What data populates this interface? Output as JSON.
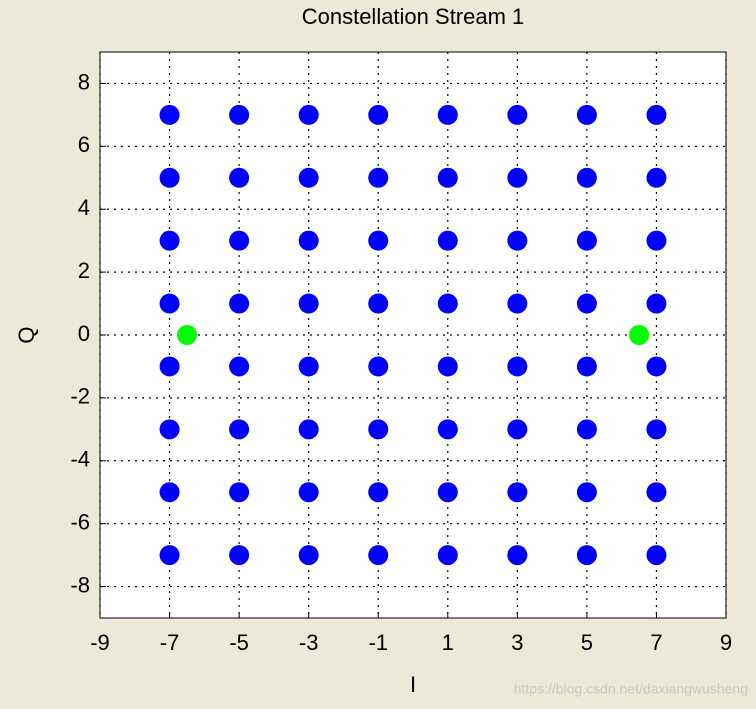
{
  "chart_data": {
    "type": "scatter",
    "title": "Constellation Stream 1",
    "x_label": "I",
    "y_label": "Q",
    "watermark": "https://blog.csdn.net/daxiangwusheng",
    "xlim": [
      -9,
      9
    ],
    "ylim": [
      -9,
      9
    ],
    "xticks": [
      -9,
      -7,
      -5,
      -3,
      -1,
      1,
      3,
      5,
      7,
      9
    ],
    "yticks": [
      -8,
      -6,
      -4,
      -2,
      0,
      2,
      4,
      6,
      8
    ],
    "grid": true,
    "series": [
      {
        "color": "#0000ff",
        "x": [
          -7,
          -5,
          -3,
          -1,
          1,
          3,
          5,
          7,
          -7,
          -5,
          -3,
          -1,
          1,
          3,
          5,
          7,
          -7,
          -5,
          -3,
          -1,
          1,
          3,
          5,
          7,
          -7,
          -5,
          -3,
          -1,
          1,
          3,
          5,
          7,
          -7,
          -5,
          -3,
          -1,
          1,
          3,
          5,
          7,
          -7,
          -5,
          -3,
          -1,
          1,
          3,
          5,
          7,
          -7,
          -5,
          -3,
          -1,
          1,
          3,
          5,
          7,
          -7,
          -5,
          -3,
          -1,
          1,
          3,
          5,
          7
        ],
        "values": [
          7,
          7,
          7,
          7,
          7,
          7,
          7,
          7,
          5,
          5,
          5,
          5,
          5,
          5,
          5,
          5,
          3,
          3,
          3,
          3,
          3,
          3,
          3,
          3,
          1,
          1,
          1,
          1,
          1,
          1,
          1,
          1,
          -1,
          -1,
          -1,
          -1,
          -1,
          -1,
          -1,
          -1,
          -3,
          -3,
          -3,
          -3,
          -3,
          -3,
          -3,
          -3,
          -5,
          -5,
          -5,
          -5,
          -5,
          -5,
          -5,
          -5,
          -7,
          -7,
          -7,
          -7,
          -7,
          -7,
          -7,
          -7
        ]
      },
      {
        "color": "#00ff00",
        "x": [
          -6.5,
          6.5
        ],
        "values": [
          0,
          0
        ]
      }
    ]
  }
}
